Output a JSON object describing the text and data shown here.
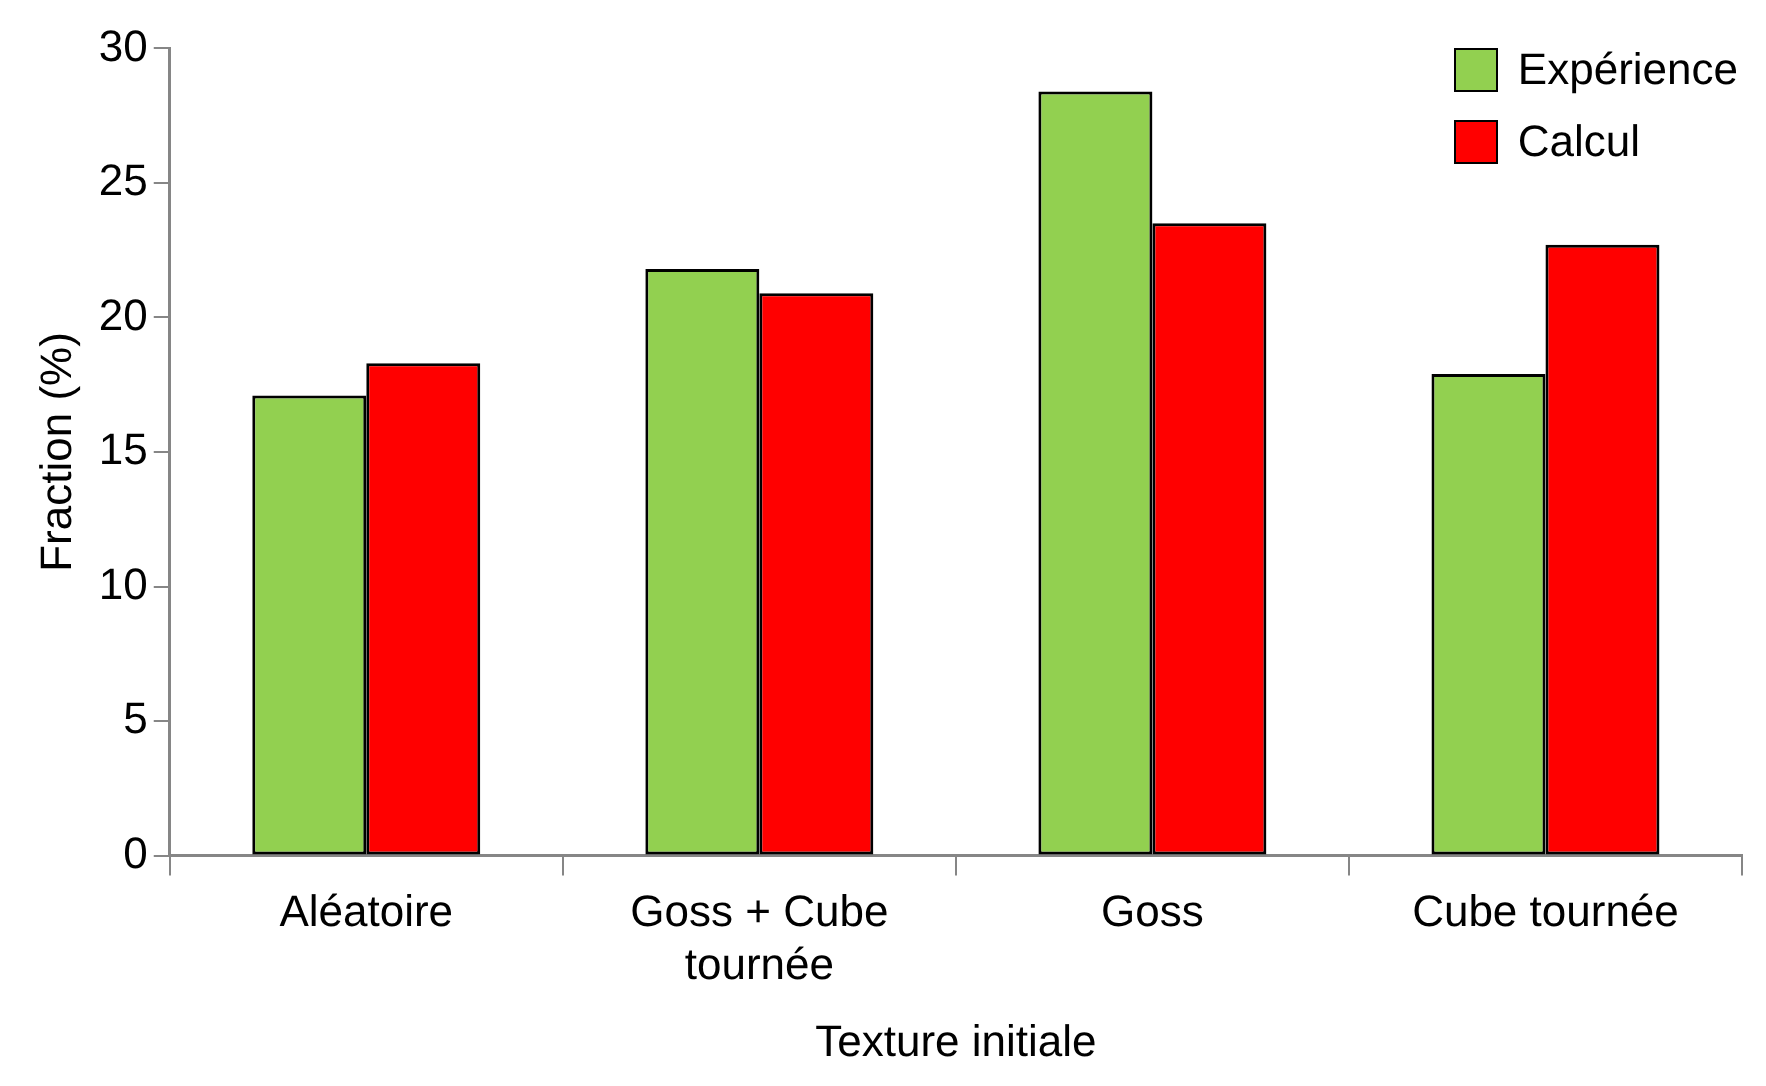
{
  "chart_data": {
    "type": "bar",
    "xlabel": "Texture initiale",
    "ylabel": "Fraction (%)",
    "categories": [
      "Aléatoire",
      "Goss + Cube tournée",
      "Goss",
      "Cube tournée"
    ],
    "series": [
      {
        "name": "Expérience",
        "color": "#92d050",
        "values": [
          17.1,
          21.8,
          28.4,
          17.9
        ]
      },
      {
        "name": "Calcul",
        "color": "#ff0000",
        "values": [
          18.3,
          20.9,
          23.5,
          22.7
        ]
      }
    ],
    "ylim": [
      0,
      30
    ],
    "yticks": [
      0,
      5,
      10,
      15,
      20,
      25,
      30
    ],
    "grid": false,
    "legend": "top right"
  }
}
